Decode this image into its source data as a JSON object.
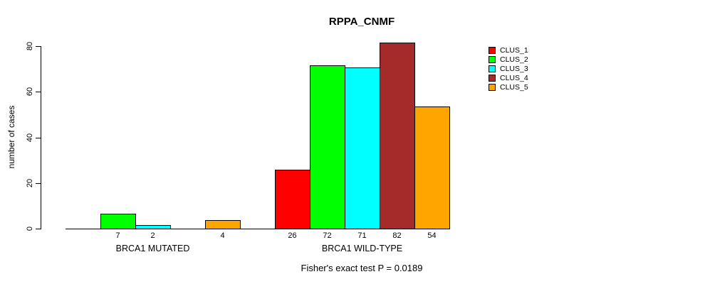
{
  "title": "RPPA_CNMF",
  "y_axis": {
    "label": "number of cases",
    "ticks": [
      0,
      20,
      40,
      60,
      80
    ]
  },
  "footer": "Fisher's exact test P = 0.0189",
  "legend": [
    {
      "label": "CLUS_1",
      "color": "#FF0000"
    },
    {
      "label": "CLUS_2",
      "color": "#00FF00"
    },
    {
      "label": "CLUS_3",
      "color": "#00FFFF"
    },
    {
      "label": "CLUS_4",
      "color": "#A52A2A"
    },
    {
      "label": "CLUS_5",
      "color": "#FFA500"
    }
  ],
  "chart_data": {
    "type": "bar",
    "title": "RPPA_CNMF",
    "xlabel": "",
    "ylabel": "number of cases",
    "ylim": [
      0,
      80
    ],
    "yticks": [
      0,
      20,
      40,
      60,
      80
    ],
    "grid": false,
    "legend_position": "top-right",
    "categories": [
      "BRCA1 MUTATED",
      "BRCA1 WILD-TYPE"
    ],
    "series": [
      {
        "name": "CLUS_1",
        "color": "#FF0000",
        "values": [
          0,
          26
        ]
      },
      {
        "name": "CLUS_2",
        "color": "#00FF00",
        "values": [
          7,
          72
        ]
      },
      {
        "name": "CLUS_3",
        "color": "#00FFFF",
        "values": [
          2,
          71
        ]
      },
      {
        "name": "CLUS_4",
        "color": "#A52A2A",
        "values": [
          0,
          82
        ]
      },
      {
        "name": "CLUS_5",
        "color": "#FFA500",
        "values": [
          4,
          54
        ]
      }
    ],
    "bar_value_labels": {
      "BRCA1 MUTATED": [
        7,
        2,
        4
      ],
      "BRCA1 WILD-TYPE": [
        26,
        72,
        71,
        82,
        54
      ]
    },
    "annotation": "Fisher's exact test P = 0.0189"
  }
}
